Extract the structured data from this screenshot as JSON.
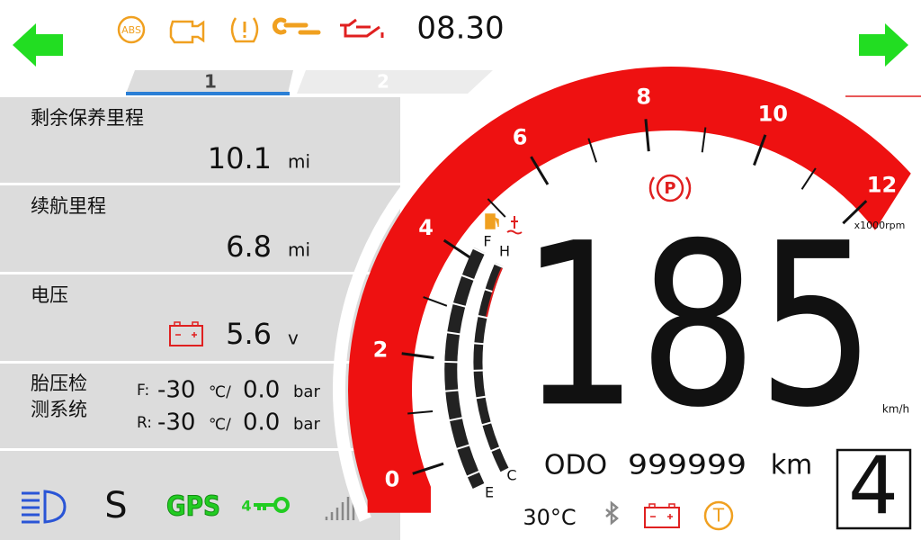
{
  "status_bar": {
    "time": "08.30",
    "abs_icon": "ABS"
  },
  "tabs": [
    "1",
    "2"
  ],
  "info_panel": {
    "rows": [
      {
        "label": "剩余保养里程",
        "value": "10.1",
        "unit": "mi"
      },
      {
        "label": "续航里程",
        "value": "6.8",
        "unit": "mi"
      },
      {
        "label": "电压",
        "value": "5.6",
        "unit": "v"
      }
    ],
    "tire_pressure": {
      "label_lines": [
        "胎压检",
        "测系统"
      ],
      "front": {
        "prefix": "F:",
        "temp": "-30",
        "temp_unit": "℃/",
        "pressure": "0.0",
        "pressure_unit": "bar"
      },
      "rear": {
        "prefix": "R:",
        "temp": "-30",
        "temp_unit": "℃/",
        "pressure": "0.0",
        "pressure_unit": "bar"
      }
    }
  },
  "bottom_icons": {
    "sport_mode": "S",
    "gps": "GPS",
    "key_count": "4"
  },
  "tachometer": {
    "labels": [
      "0",
      "2",
      "4",
      "6",
      "8",
      "10",
      "12"
    ],
    "unit": "x1000rpm"
  },
  "gauges": {
    "fuel_full": "F",
    "fuel_empty": "E",
    "temp_hot": "H",
    "temp_cold": "C"
  },
  "speed": {
    "value": "185",
    "unit": "km/h"
  },
  "odometer": {
    "label": "ODO",
    "value": "999999",
    "unit": "km"
  },
  "temperature": "30°C",
  "parking_icon": "P",
  "tcs_icon": "T",
  "gear": "4"
}
